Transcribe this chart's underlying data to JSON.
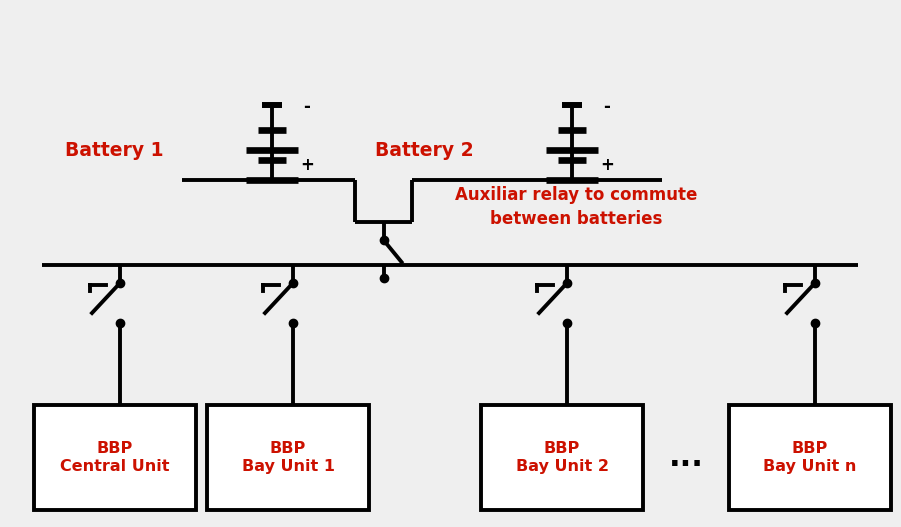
{
  "bg_color": "#efefef",
  "line_color": "#000000",
  "red_color": "#cc1100",
  "box_color": "#ffffff",
  "box_edge_color": "#000000",
  "battery1_label": "Battery 1",
  "battery2_label": "Battery 2",
  "aux_relay_label": "Auxiliar relay to commute\nbetween batteries",
  "bbp_labels": [
    "BBP\nCentral Unit",
    "BBP\nBay Unit 1",
    "BBP\nBay Unit 2",
    "BBP\nBay Unit n"
  ],
  "dots_label": "...",
  "plus_label": "+",
  "minus_label": "-",
  "lw": 2.8
}
